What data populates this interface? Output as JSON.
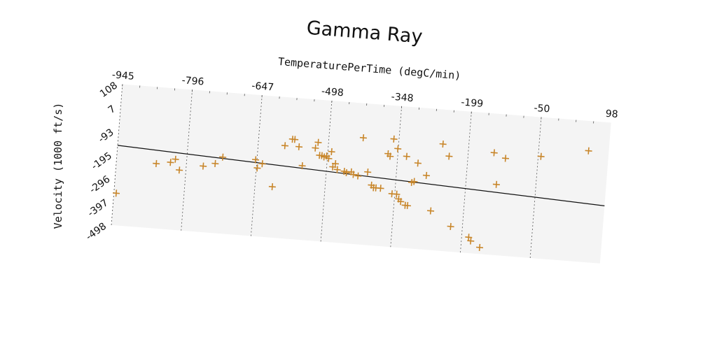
{
  "chart_data": {
    "type": "scatter",
    "title": "Gamma Ray",
    "xlabel": "TemperaturePerTime (degC/min)",
    "ylabel": "Velocity (1000 ft/s)",
    "xlim": [
      -945,
      98
    ],
    "ylim": [
      -498,
      108
    ],
    "x_ticks": [
      "-945",
      "-796",
      "-647",
      "-498",
      "-348",
      "-199",
      "-50",
      "98"
    ],
    "y_ticks": [
      "108",
      "7",
      "-93",
      "-195",
      "-296",
      "-397",
      "-498"
    ],
    "x_axis_position": "top",
    "grid": "vertical dashed",
    "plot_background": "#f4f4f4",
    "marker": "+",
    "marker_color": "#c8862a",
    "trend_line": {
      "from": [
        -945,
        -155
      ],
      "to": [
        98,
        -250
      ]
    },
    "points": [
      [
        -940,
        -360
      ],
      [
        -860,
        -220
      ],
      [
        -830,
        -210
      ],
      [
        -820,
        -195
      ],
      [
        -810,
        -240
      ],
      [
        -760,
        -215
      ],
      [
        -735,
        -200
      ],
      [
        -720,
        -170
      ],
      [
        -650,
        -170
      ],
      [
        -645,
        -205
      ],
      [
        -635,
        -185
      ],
      [
        -610,
        -280
      ],
      [
        -590,
        -100
      ],
      [
        -575,
        -70
      ],
      [
        -570,
        -70
      ],
      [
        -560,
        -100
      ],
      [
        -550,
        -180
      ],
      [
        -525,
        -100
      ],
      [
        -520,
        -75
      ],
      [
        -515,
        -130
      ],
      [
        -510,
        -130
      ],
      [
        -505,
        -135
      ],
      [
        -500,
        -130
      ],
      [
        -495,
        -140
      ],
      [
        -490,
        -110
      ],
      [
        -485,
        -175
      ],
      [
        -480,
        -160
      ],
      [
        -475,
        -185
      ],
      [
        -460,
        -190
      ],
      [
        -455,
        -195
      ],
      [
        -445,
        -190
      ],
      [
        -440,
        -200
      ],
      [
        -430,
        -205
      ],
      [
        -425,
        -40
      ],
      [
        -410,
        -185
      ],
      [
        -400,
        -240
      ],
      [
        -395,
        -250
      ],
      [
        -390,
        -250
      ],
      [
        -380,
        -250
      ],
      [
        -370,
        -100
      ],
      [
        -365,
        -110
      ],
      [
        -360,
        -35
      ],
      [
        -350,
        -75
      ],
      [
        -355,
        -270
      ],
      [
        -345,
        -270
      ],
      [
        -340,
        -290
      ],
      [
        -335,
        -300
      ],
      [
        -330,
        -105
      ],
      [
        -325,
        -315
      ],
      [
        -320,
        -315
      ],
      [
        -315,
        -215
      ],
      [
        -310,
        -210
      ],
      [
        -305,
        -130
      ],
      [
        -285,
        -180
      ],
      [
        -270,
        -330
      ],
      [
        -255,
        -40
      ],
      [
        -240,
        -90
      ],
      [
        -225,
        -390
      ],
      [
        -185,
        -430
      ],
      [
        -180,
        -445
      ],
      [
        -160,
        -470
      ],
      [
        -145,
        -60
      ],
      [
        -135,
        -195
      ],
      [
        -120,
        -80
      ],
      [
        -45,
        -60
      ],
      [
        55,
        -20
      ]
    ]
  }
}
